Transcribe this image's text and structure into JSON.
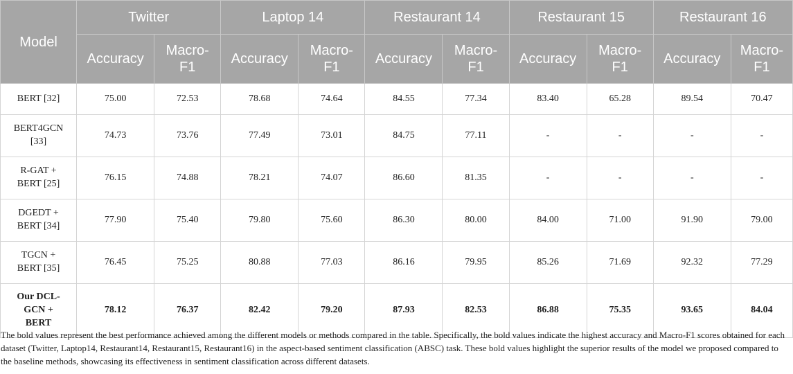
{
  "table": {
    "model_header": "Model",
    "datasets": [
      "Twitter",
      "Laptop 14",
      "Restaurant 14",
      "Restaurant 15",
      "Restaurant 16"
    ],
    "metric_accuracy": "Accuracy",
    "metric_macro_f1_line1": "Macro-",
    "metric_macro_f1_line2": "F1",
    "rows": [
      {
        "model_line1": "BERT [32]",
        "model_line2": "",
        "model_line3": "",
        "values": [
          "75.00",
          "72.53",
          "78.68",
          "74.64",
          "84.55",
          "77.34",
          "83.40",
          "65.28",
          "89.54",
          "70.47"
        ]
      },
      {
        "model_line1": "BERT4GCN",
        "model_line2": "[33]",
        "model_line3": "",
        "values": [
          "74.73",
          "73.76",
          "77.49",
          "73.01",
          "84.75",
          "77.11",
          "-",
          "-",
          "-",
          "-"
        ]
      },
      {
        "model_line1": "R-GAT +",
        "model_line2": "BERT [25]",
        "model_line3": "",
        "values": [
          "76.15",
          "74.88",
          "78.21",
          "74.07",
          "86.60",
          "81.35",
          "-",
          "-",
          "-",
          "-"
        ]
      },
      {
        "model_line1": "DGEDT +",
        "model_line2": "BERT [34]",
        "model_line3": "",
        "values": [
          "77.90",
          "75.40",
          "79.80",
          "75.60",
          "86.30",
          "80.00",
          "84.00",
          "71.00",
          "91.90",
          "79.00"
        ]
      },
      {
        "model_line1": "TGCN +",
        "model_line2": "BERT [35]",
        "model_line3": "",
        "values": [
          "76.45",
          "75.25",
          "80.88",
          "77.03",
          "86.16",
          "79.95",
          "85.26",
          "71.69",
          "92.32",
          "77.29"
        ]
      },
      {
        "model_line1": "Our DCL-",
        "model_line2": "GCN +",
        "model_line3": "BERT",
        "values": [
          "78.12",
          "76.37",
          "82.42",
          "79.20",
          "87.93",
          "82.53",
          "86.88",
          "75.35",
          "93.65",
          "84.04"
        ]
      }
    ]
  },
  "footnote": "The bold values represent the best performance achieved among the different models or methods compared in the table. Specifically, the bold values indicate the highest accuracy and Macro-F1 scores obtained for each dataset (Twitter, Laptop14, Restaurant14, Restaurant15, Restaurant16) in the aspect-based sentiment classification (ABSC) task. These bold values highlight the superior results of the model we proposed compared to the baseline methods, showcasing its effectiveness in sentiment classification across different datasets.",
  "colors": {
    "header_background": "#a6a6a6",
    "header_text": "#ffffff",
    "body_text": "#222222",
    "grid_lines": "#d4d4d4"
  }
}
